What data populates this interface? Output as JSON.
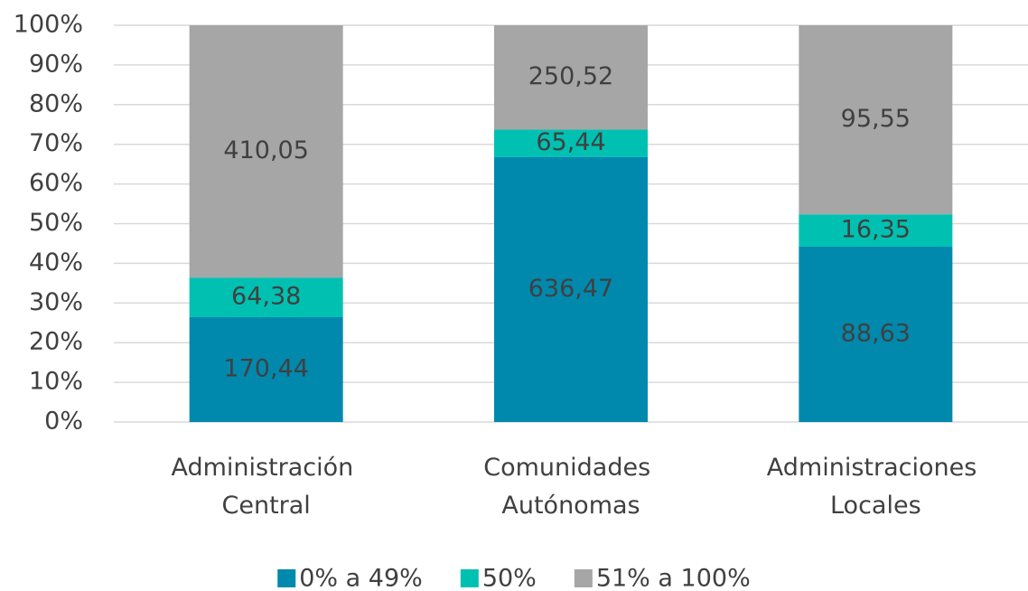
{
  "chart_data": {
    "type": "stacked_percent_bar",
    "categories": [
      "Administración Central",
      "Comunidades Autónomas",
      "Administraciones Locales"
    ],
    "series": [
      {
        "name": "0% a 49%",
        "color": "#0089ad",
        "values": [
          170.44,
          636.47,
          88.63
        ],
        "value_labels": [
          "170,44",
          "636,47",
          "88,63"
        ]
      },
      {
        "name": "50%",
        "color": "#00c1b1",
        "values": [
          64.38,
          65.44,
          16.35
        ],
        "value_labels": [
          "64,38",
          "65,44",
          "16,35"
        ]
      },
      {
        "name": "51% a 100%",
        "color": "#a6a6a6",
        "values": [
          410.05,
          250.52,
          95.55
        ],
        "value_labels": [
          "410,05",
          "250,52",
          "95,55"
        ]
      }
    ],
    "ylim": [
      0,
      100
    ],
    "yticks": [
      {
        "value": 0,
        "label": "0%"
      },
      {
        "value": 10,
        "label": "10%"
      },
      {
        "value": 20,
        "label": "20%"
      },
      {
        "value": 30,
        "label": "30%"
      },
      {
        "value": 40,
        "label": "40%"
      },
      {
        "value": 50,
        "label": "50%"
      },
      {
        "value": 60,
        "label": "60%"
      },
      {
        "value": 70,
        "label": "70%"
      },
      {
        "value": 80,
        "label": "80%"
      },
      {
        "value": 90,
        "label": "90%"
      },
      {
        "value": 100,
        "label": "100%"
      }
    ],
    "grid": true,
    "legend": "bottom"
  }
}
